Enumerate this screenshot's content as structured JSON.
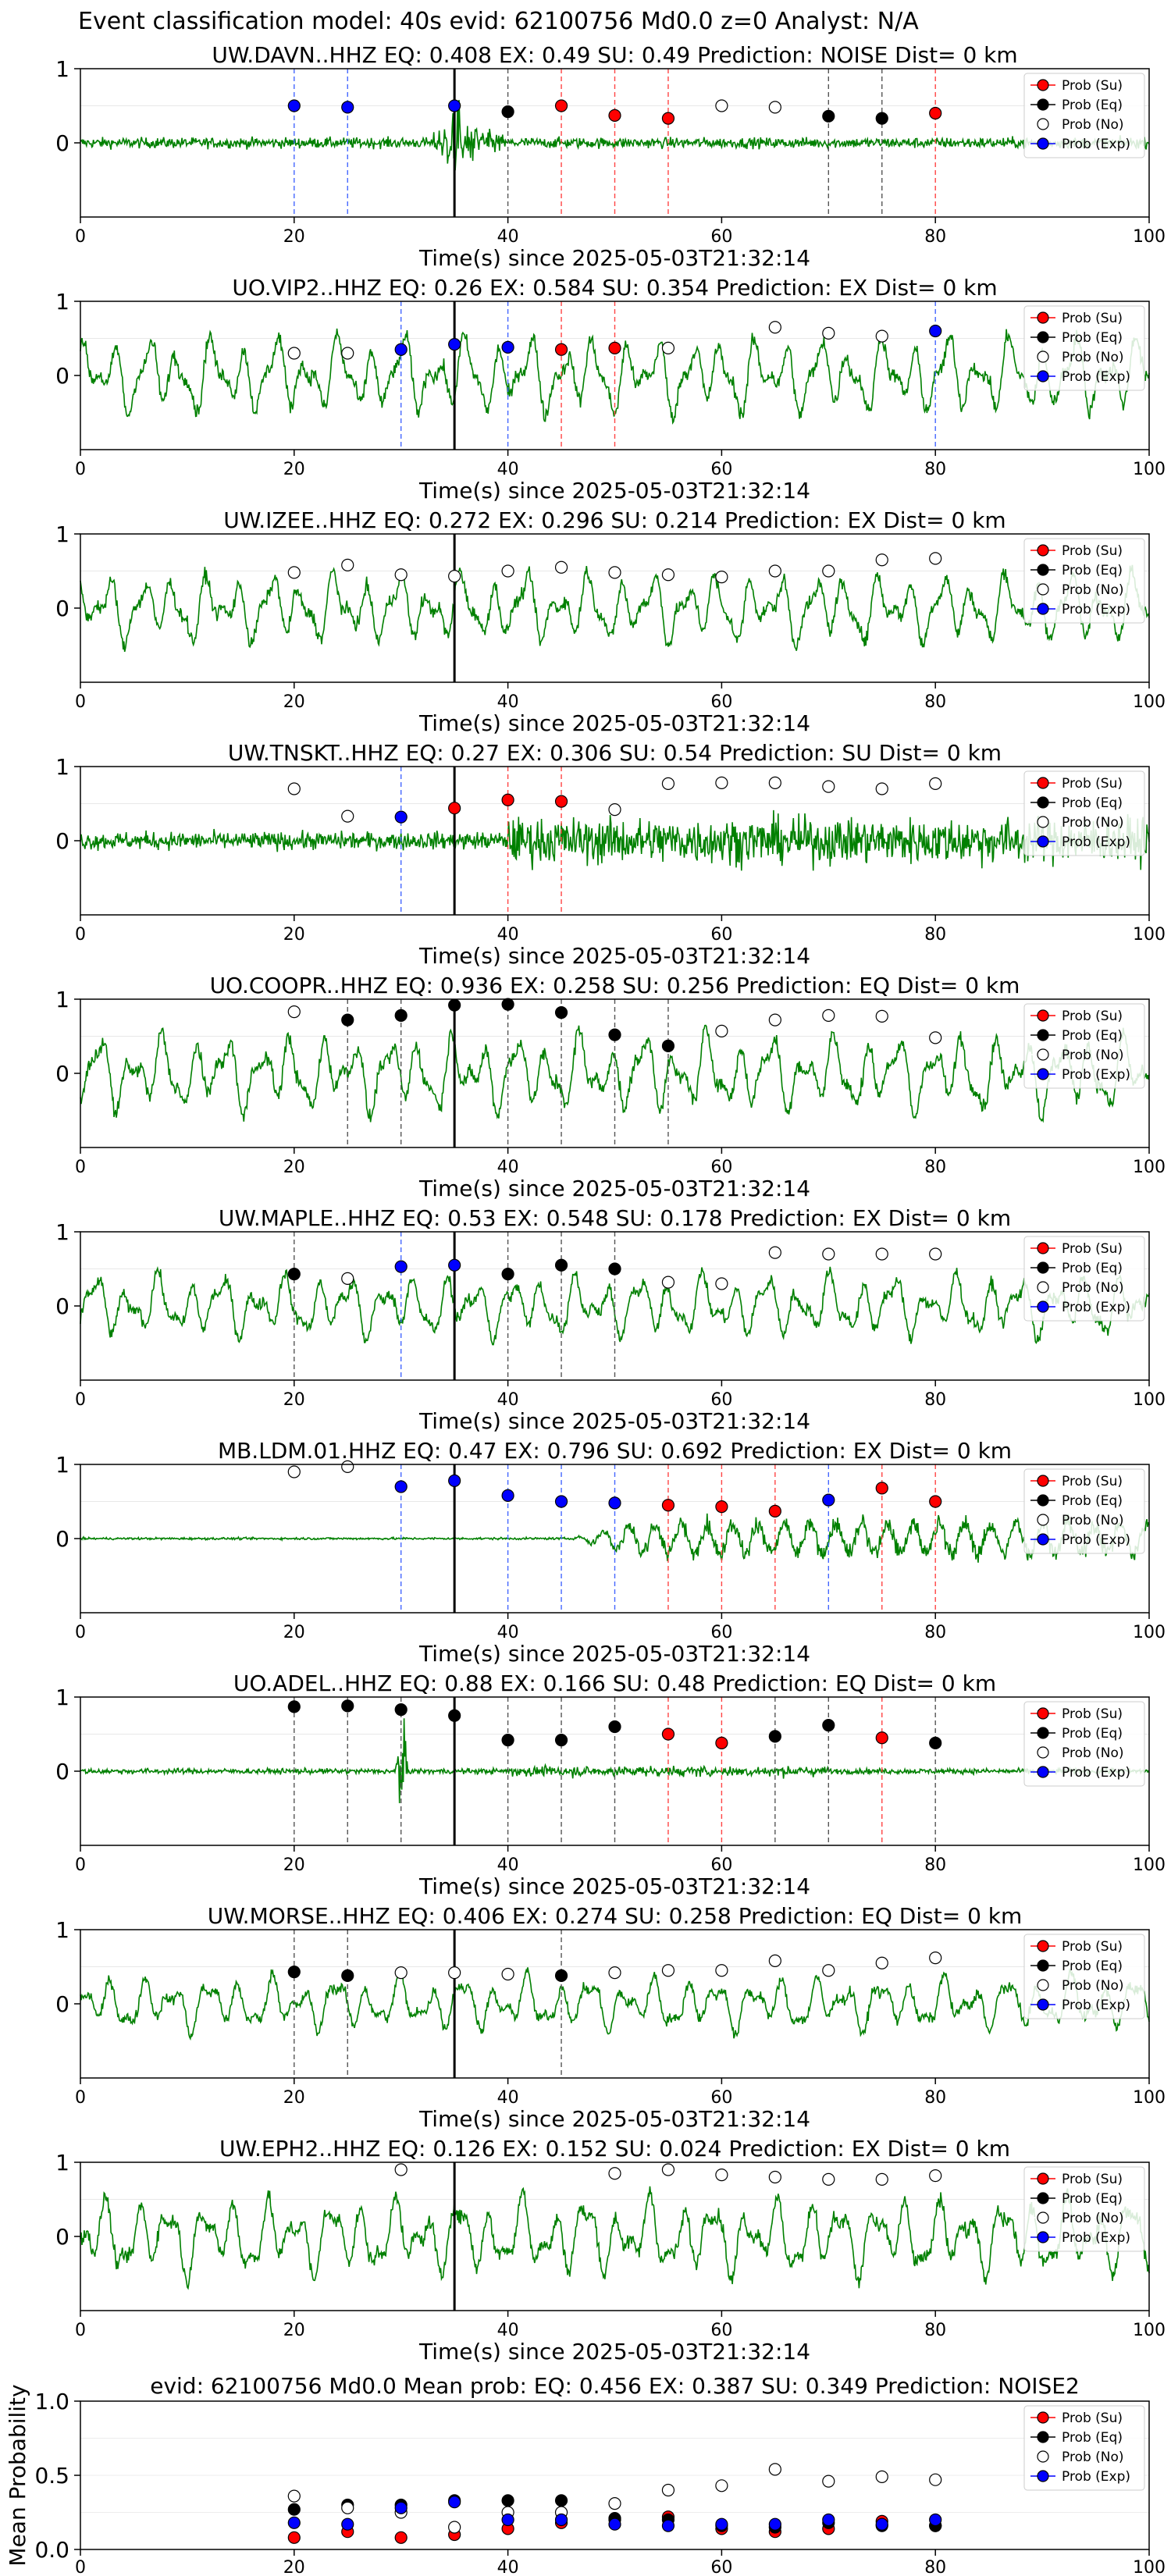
{
  "page_title": "Event classification model: 40s evid: 62100756 Md0.0 z=0 Analyst: N/A",
  "legend_labels": [
    "Prob (Su)",
    "Prob (Eq)",
    "Prob (No)",
    "Prob (Exp)"
  ],
  "colors": {
    "su": "#ff0000",
    "eq": "#000000",
    "no": "#ffffff",
    "exp": "#0000ff",
    "trace": "#008000"
  },
  "chart_data": [
    {
      "type": "scatter",
      "station": "UW.DAVN..HHZ",
      "title": "UW.DAVN..HHZ   EQ: 0.408  EX: 0.49  SU: 0.49   Prediction: NOISE    Dist= 0 km",
      "xlabel": "Time(s) since 2025-05-03T21:32:14",
      "xlim": [
        0,
        100
      ],
      "ylim": [
        -1,
        1
      ],
      "xticks": [
        "0",
        "20",
        "40",
        "60",
        "80",
        "100"
      ],
      "yticks": [
        "1",
        "0"
      ],
      "trace_style": "burst",
      "trace_amplitude": 0.12,
      "event_onset_s": 35,
      "points": [
        {
          "x": 20,
          "y": 0.5,
          "cls": "exp"
        },
        {
          "x": 25,
          "y": 0.48,
          "cls": "exp"
        },
        {
          "x": 35,
          "y": 0.5,
          "cls": "exp"
        },
        {
          "x": 40,
          "y": 0.42,
          "cls": "eq"
        },
        {
          "x": 45,
          "y": 0.5,
          "cls": "su"
        },
        {
          "x": 50,
          "y": 0.37,
          "cls": "su"
        },
        {
          "x": 55,
          "y": 0.33,
          "cls": "su"
        },
        {
          "x": 60,
          "y": 0.5,
          "cls": "no"
        },
        {
          "x": 65,
          "y": 0.48,
          "cls": "no"
        },
        {
          "x": 70,
          "y": 0.36,
          "cls": "eq"
        },
        {
          "x": 75,
          "y": 0.33,
          "cls": "eq"
        },
        {
          "x": 80,
          "y": 0.4,
          "cls": "su"
        }
      ]
    },
    {
      "type": "scatter",
      "station": "UO.VIP2..HHZ",
      "title": "UO.VIP2..HHZ   EQ: 0.26  EX: 0.584  SU: 0.354   Prediction: EX    Dist= 0 km",
      "xlabel": "Time(s) since 2025-05-03T21:32:14",
      "xlim": [
        0,
        100
      ],
      "ylim": [
        -1,
        1
      ],
      "xticks": [
        "0",
        "20",
        "40",
        "60",
        "80",
        "100"
      ],
      "yticks": [
        "1",
        "0"
      ],
      "trace_style": "wavy",
      "trace_amplitude": 0.5,
      "event_onset_s": 35,
      "points": [
        {
          "x": 20,
          "y": 0.3,
          "cls": "no"
        },
        {
          "x": 25,
          "y": 0.3,
          "cls": "no"
        },
        {
          "x": 30,
          "y": 0.35,
          "cls": "exp"
        },
        {
          "x": 35,
          "y": 0.42,
          "cls": "exp"
        },
        {
          "x": 40,
          "y": 0.38,
          "cls": "exp"
        },
        {
          "x": 45,
          "y": 0.35,
          "cls": "su"
        },
        {
          "x": 50,
          "y": 0.37,
          "cls": "su"
        },
        {
          "x": 55,
          "y": 0.37,
          "cls": "no"
        },
        {
          "x": 65,
          "y": 0.65,
          "cls": "no"
        },
        {
          "x": 70,
          "y": 0.57,
          "cls": "no"
        },
        {
          "x": 75,
          "y": 0.53,
          "cls": "no"
        },
        {
          "x": 80,
          "y": 0.6,
          "cls": "exp"
        }
      ]
    },
    {
      "type": "scatter",
      "station": "UW.IZEE..HHZ",
      "title": "UW.IZEE..HHZ   EQ: 0.272  EX: 0.296  SU: 0.214   Prediction: EX    Dist= 0 km",
      "xlabel": "Time(s) since 2025-05-03T21:32:14",
      "xlim": [
        0,
        100
      ],
      "ylim": [
        -1,
        1
      ],
      "xticks": [
        "0",
        "20",
        "40",
        "60",
        "80",
        "100"
      ],
      "yticks": [
        "1",
        "0"
      ],
      "trace_style": "wavy",
      "trace_amplitude": 0.45,
      "event_onset_s": 35,
      "points": [
        {
          "x": 20,
          "y": 0.48,
          "cls": "no"
        },
        {
          "x": 25,
          "y": 0.58,
          "cls": "no"
        },
        {
          "x": 30,
          "y": 0.45,
          "cls": "no"
        },
        {
          "x": 35,
          "y": 0.43,
          "cls": "no"
        },
        {
          "x": 40,
          "y": 0.5,
          "cls": "no"
        },
        {
          "x": 45,
          "y": 0.55,
          "cls": "no"
        },
        {
          "x": 50,
          "y": 0.48,
          "cls": "no"
        },
        {
          "x": 55,
          "y": 0.45,
          "cls": "no"
        },
        {
          "x": 60,
          "y": 0.42,
          "cls": "no"
        },
        {
          "x": 65,
          "y": 0.5,
          "cls": "no"
        },
        {
          "x": 70,
          "y": 0.5,
          "cls": "no"
        },
        {
          "x": 75,
          "y": 0.65,
          "cls": "no"
        },
        {
          "x": 80,
          "y": 0.67,
          "cls": "no"
        }
      ]
    },
    {
      "type": "scatter",
      "station": "UW.TNSKT..HHZ",
      "title": "UW.TNSKT..HHZ   EQ: 0.27  EX: 0.306  SU: 0.54   Prediction: SU    Dist= 0 km",
      "xlabel": "Time(s) since 2025-05-03T21:32:14",
      "xlim": [
        0,
        100
      ],
      "ylim": [
        -1,
        1
      ],
      "xticks": [
        "0",
        "20",
        "40",
        "60",
        "80",
        "100"
      ],
      "yticks": [
        "1",
        "0"
      ],
      "trace_style": "dense",
      "trace_amplitude": 0.2,
      "event_onset_s": 35,
      "points": [
        {
          "x": 20,
          "y": 0.7,
          "cls": "no"
        },
        {
          "x": 25,
          "y": 0.33,
          "cls": "no"
        },
        {
          "x": 30,
          "y": 0.32,
          "cls": "exp"
        },
        {
          "x": 35,
          "y": 0.44,
          "cls": "su"
        },
        {
          "x": 40,
          "y": 0.55,
          "cls": "su"
        },
        {
          "x": 45,
          "y": 0.53,
          "cls": "su"
        },
        {
          "x": 50,
          "y": 0.42,
          "cls": "no"
        },
        {
          "x": 55,
          "y": 0.77,
          "cls": "no"
        },
        {
          "x": 60,
          "y": 0.78,
          "cls": "no"
        },
        {
          "x": 65,
          "y": 0.78,
          "cls": "no"
        },
        {
          "x": 70,
          "y": 0.73,
          "cls": "no"
        },
        {
          "x": 75,
          "y": 0.7,
          "cls": "no"
        },
        {
          "x": 80,
          "y": 0.77,
          "cls": "no"
        }
      ]
    },
    {
      "type": "scatter",
      "station": "UO.COOPR..HHZ",
      "title": "UO.COOPR..HHZ   EQ: 0.936  EX: 0.258  SU: 0.256   Prediction: EQ    Dist= 0 km",
      "xlabel": "Time(s) since 2025-05-03T21:32:14",
      "xlim": [
        0,
        100
      ],
      "ylim": [
        -1,
        1
      ],
      "xticks": [
        "0",
        "20",
        "40",
        "60",
        "80",
        "100"
      ],
      "yticks": [
        "1",
        "0"
      ],
      "trace_style": "wavy",
      "trace_amplitude": 0.5,
      "event_onset_s": 35,
      "points": [
        {
          "x": 20,
          "y": 0.83,
          "cls": "no"
        },
        {
          "x": 25,
          "y": 0.72,
          "cls": "eq"
        },
        {
          "x": 30,
          "y": 0.78,
          "cls": "eq"
        },
        {
          "x": 35,
          "y": 0.92,
          "cls": "eq"
        },
        {
          "x": 40,
          "y": 0.93,
          "cls": "eq"
        },
        {
          "x": 45,
          "y": 0.82,
          "cls": "eq"
        },
        {
          "x": 50,
          "y": 0.52,
          "cls": "eq"
        },
        {
          "x": 55,
          "y": 0.37,
          "cls": "eq"
        },
        {
          "x": 60,
          "y": 0.57,
          "cls": "no"
        },
        {
          "x": 65,
          "y": 0.72,
          "cls": "no"
        },
        {
          "x": 70,
          "y": 0.78,
          "cls": "no"
        },
        {
          "x": 75,
          "y": 0.77,
          "cls": "no"
        },
        {
          "x": 80,
          "y": 0.48,
          "cls": "no"
        }
      ]
    },
    {
      "type": "scatter",
      "station": "UW.MAPLE..HHZ",
      "title": "UW.MAPLE..HHZ   EQ: 0.53  EX: 0.548  SU: 0.178   Prediction: EX    Dist= 0 km",
      "xlabel": "Time(s) since 2025-05-03T21:32:14",
      "xlim": [
        0,
        100
      ],
      "ylim": [
        -1,
        1
      ],
      "xticks": [
        "0",
        "20",
        "40",
        "60",
        "80",
        "100"
      ],
      "yticks": [
        "1",
        "0"
      ],
      "trace_style": "wavy",
      "trace_amplitude": 0.4,
      "event_onset_s": 35,
      "points": [
        {
          "x": 20,
          "y": 0.43,
          "cls": "eq"
        },
        {
          "x": 25,
          "y": 0.37,
          "cls": "no"
        },
        {
          "x": 30,
          "y": 0.53,
          "cls": "exp"
        },
        {
          "x": 35,
          "y": 0.55,
          "cls": "exp"
        },
        {
          "x": 40,
          "y": 0.43,
          "cls": "eq"
        },
        {
          "x": 45,
          "y": 0.55,
          "cls": "eq"
        },
        {
          "x": 50,
          "y": 0.5,
          "cls": "eq"
        },
        {
          "x": 55,
          "y": 0.32,
          "cls": "no"
        },
        {
          "x": 60,
          "y": 0.3,
          "cls": "no"
        },
        {
          "x": 65,
          "y": 0.72,
          "cls": "no"
        },
        {
          "x": 70,
          "y": 0.7,
          "cls": "no"
        },
        {
          "x": 75,
          "y": 0.7,
          "cls": "no"
        },
        {
          "x": 80,
          "y": 0.7,
          "cls": "no"
        }
      ]
    },
    {
      "type": "scatter",
      "station": "MB.LDM.01.HHZ",
      "title": "MB.LDM.01.HHZ   EQ: 0.47  EX: 0.796  SU: 0.692   Prediction: EX    Dist= 0 km",
      "xlabel": "Time(s) since 2025-05-03T21:32:14",
      "xlim": [
        0,
        100
      ],
      "ylim": [
        -1,
        1
      ],
      "xticks": [
        "0",
        "20",
        "40",
        "60",
        "80",
        "100"
      ],
      "yticks": [
        "1",
        "0"
      ],
      "trace_style": "lateburst",
      "trace_amplitude": 0.05,
      "event_onset_s": 35,
      "points": [
        {
          "x": 20,
          "y": 0.9,
          "cls": "no"
        },
        {
          "x": 25,
          "y": 0.97,
          "cls": "no"
        },
        {
          "x": 30,
          "y": 0.7,
          "cls": "exp"
        },
        {
          "x": 35,
          "y": 0.78,
          "cls": "exp"
        },
        {
          "x": 40,
          "y": 0.58,
          "cls": "exp"
        },
        {
          "x": 45,
          "y": 0.5,
          "cls": "exp"
        },
        {
          "x": 50,
          "y": 0.48,
          "cls": "exp"
        },
        {
          "x": 55,
          "y": 0.45,
          "cls": "su"
        },
        {
          "x": 60,
          "y": 0.43,
          "cls": "su"
        },
        {
          "x": 65,
          "y": 0.37,
          "cls": "su"
        },
        {
          "x": 70,
          "y": 0.52,
          "cls": "exp"
        },
        {
          "x": 75,
          "y": 0.68,
          "cls": "su"
        },
        {
          "x": 80,
          "y": 0.5,
          "cls": "su"
        }
      ]
    },
    {
      "type": "scatter",
      "station": "UO.ADEL..HHZ",
      "title": "UO.ADEL..HHZ   EQ: 0.88  EX: 0.166  SU: 0.48   Prediction: EQ    Dist= 0 km",
      "xlabel": "Time(s) since 2025-05-03T21:32:14",
      "xlim": [
        0,
        100
      ],
      "ylim": [
        -1,
        1
      ],
      "xticks": [
        "0",
        "20",
        "40",
        "60",
        "80",
        "100"
      ],
      "yticks": [
        "1",
        "0"
      ],
      "trace_style": "spiky",
      "trace_amplitude": 0.06,
      "event_onset_s": 35,
      "points": [
        {
          "x": 20,
          "y": 0.87,
          "cls": "eq"
        },
        {
          "x": 25,
          "y": 0.88,
          "cls": "eq"
        },
        {
          "x": 30,
          "y": 0.83,
          "cls": "eq"
        },
        {
          "x": 35,
          "y": 0.75,
          "cls": "eq"
        },
        {
          "x": 40,
          "y": 0.42,
          "cls": "eq"
        },
        {
          "x": 45,
          "y": 0.42,
          "cls": "eq"
        },
        {
          "x": 50,
          "y": 0.6,
          "cls": "eq"
        },
        {
          "x": 55,
          "y": 0.5,
          "cls": "su"
        },
        {
          "x": 60,
          "y": 0.38,
          "cls": "su"
        },
        {
          "x": 65,
          "y": 0.47,
          "cls": "eq"
        },
        {
          "x": 70,
          "y": 0.62,
          "cls": "eq"
        },
        {
          "x": 75,
          "y": 0.45,
          "cls": "su"
        },
        {
          "x": 80,
          "y": 0.38,
          "cls": "eq"
        }
      ]
    },
    {
      "type": "scatter",
      "station": "UW.MORSE..HHZ",
      "title": "UW.MORSE..HHZ   EQ: 0.406  EX: 0.274  SU: 0.258   Prediction: EQ    Dist= 0 km",
      "xlabel": "Time(s) since 2025-05-03T21:32:14",
      "xlim": [
        0,
        100
      ],
      "ylim": [
        -1,
        1
      ],
      "xticks": [
        "0",
        "20",
        "40",
        "60",
        "80",
        "100"
      ],
      "yticks": [
        "1",
        "0"
      ],
      "trace_style": "wavy",
      "trace_amplitude": 0.35,
      "event_onset_s": 35,
      "points": [
        {
          "x": 20,
          "y": 0.43,
          "cls": "eq"
        },
        {
          "x": 25,
          "y": 0.38,
          "cls": "eq"
        },
        {
          "x": 30,
          "y": 0.42,
          "cls": "no"
        },
        {
          "x": 35,
          "y": 0.42,
          "cls": "no"
        },
        {
          "x": 40,
          "y": 0.4,
          "cls": "no"
        },
        {
          "x": 45,
          "y": 0.38,
          "cls": "eq"
        },
        {
          "x": 50,
          "y": 0.42,
          "cls": "no"
        },
        {
          "x": 55,
          "y": 0.45,
          "cls": "no"
        },
        {
          "x": 60,
          "y": 0.45,
          "cls": "no"
        },
        {
          "x": 65,
          "y": 0.58,
          "cls": "no"
        },
        {
          "x": 70,
          "y": 0.45,
          "cls": "no"
        },
        {
          "x": 75,
          "y": 0.55,
          "cls": "no"
        },
        {
          "x": 80,
          "y": 0.62,
          "cls": "no"
        }
      ]
    },
    {
      "type": "scatter",
      "station": "UW.EPH2..HHZ",
      "title": "UW.EPH2..HHZ   EQ: 0.126  EX: 0.152  SU: 0.024   Prediction: EX    Dist= 0 km",
      "xlabel": "Time(s) since 2025-05-03T21:32:14",
      "xlim": [
        0,
        100
      ],
      "ylim": [
        -1,
        1
      ],
      "xticks": [
        "0",
        "20",
        "40",
        "60",
        "80",
        "100"
      ],
      "yticks": [
        "1",
        "0"
      ],
      "trace_style": "wavy",
      "trace_amplitude": 0.5,
      "event_onset_s": 35,
      "points": [
        {
          "x": 30,
          "y": 0.9,
          "cls": "no"
        },
        {
          "x": 50,
          "y": 0.85,
          "cls": "no"
        },
        {
          "x": 55,
          "y": 0.9,
          "cls": "no"
        },
        {
          "x": 60,
          "y": 0.83,
          "cls": "no"
        },
        {
          "x": 65,
          "y": 0.8,
          "cls": "no"
        },
        {
          "x": 70,
          "y": 0.77,
          "cls": "no"
        },
        {
          "x": 75,
          "y": 0.77,
          "cls": "no"
        },
        {
          "x": 80,
          "y": 0.82,
          "cls": "no"
        }
      ]
    },
    {
      "type": "scatter",
      "summary": true,
      "title": "evid: 62100756  Md0.0   Mean prob:   EQ: 0.456  EX: 0.387  SU: 0.349   Prediction: NOISE2",
      "ylabel": "Mean Probability",
      "xlim": [
        0,
        100
      ],
      "ylim": [
        0,
        1
      ],
      "xticks": [
        "0",
        "20",
        "40",
        "60",
        "80",
        "100"
      ],
      "yticks": [
        "1.0",
        "0.5",
        "0.0"
      ],
      "series": [
        {
          "name": "Prob (Su)",
          "cls": "su",
          "x": [
            20,
            25,
            30,
            35,
            40,
            45,
            50,
            55,
            60,
            65,
            70,
            75,
            80
          ],
          "y": [
            0.08,
            0.12,
            0.08,
            0.1,
            0.14,
            0.18,
            0.2,
            0.22,
            0.14,
            0.12,
            0.14,
            0.19,
            0.16
          ]
        },
        {
          "name": "Prob (Eq)",
          "cls": "eq",
          "x": [
            20,
            25,
            30,
            35,
            40,
            45,
            50,
            55,
            60,
            65,
            70,
            75,
            80
          ],
          "y": [
            0.27,
            0.3,
            0.3,
            0.33,
            0.33,
            0.33,
            0.21,
            0.2,
            0.16,
            0.15,
            0.18,
            0.16,
            0.16
          ]
        },
        {
          "name": "Prob (No)",
          "cls": "no",
          "x": [
            20,
            25,
            30,
            35,
            40,
            45,
            50,
            55,
            60,
            65,
            70,
            75,
            80
          ],
          "y": [
            0.36,
            0.28,
            0.25,
            0.15,
            0.25,
            0.25,
            0.31,
            0.4,
            0.43,
            0.54,
            0.46,
            0.49,
            0.47
          ]
        },
        {
          "name": "Prob (Exp)",
          "cls": "exp",
          "x": [
            20,
            25,
            30,
            35,
            40,
            45,
            50,
            55,
            60,
            65,
            70,
            75,
            80
          ],
          "y": [
            0.18,
            0.17,
            0.28,
            0.32,
            0.2,
            0.2,
            0.17,
            0.16,
            0.17,
            0.17,
            0.2,
            0.17,
            0.2
          ]
        }
      ]
    }
  ]
}
